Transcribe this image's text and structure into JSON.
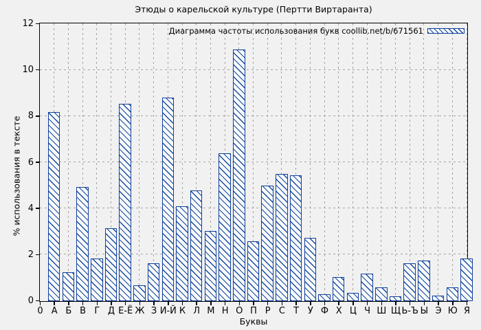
{
  "chart_data": {
    "type": "bar",
    "title": "Этюды о карельской культуре (Пертти Виртаранта)",
    "legend_label": "Диаграмма частоты использования букв coollib.net/b/671561",
    "xlabel": "Буквы",
    "ylabel": "% использования в тексте",
    "ylim": [
      0,
      12
    ],
    "yticks": [
      0,
      2,
      4,
      6,
      8,
      10,
      12
    ],
    "grid": true,
    "legend_position": "top-right-inside",
    "categories": [
      "0",
      "А",
      "Б",
      "В",
      "Г",
      "Д",
      "Е-Ё",
      "Ж",
      "З",
      "И-Й",
      "К",
      "Л",
      "М",
      "Н",
      "О",
      "П",
      "Р",
      "С",
      "Т",
      "У",
      "Ф",
      "Х",
      "Ц",
      "Ч",
      "Ш",
      "Щ",
      "Ь-Ъ",
      "Ы",
      "Э",
      "Ю",
      "Я"
    ],
    "values": [
      0,
      8.2,
      1.25,
      4.95,
      1.85,
      3.15,
      8.55,
      0.7,
      1.65,
      8.8,
      4.1,
      4.8,
      3.05,
      6.4,
      10.9,
      2.6,
      5.0,
      5.5,
      5.45,
      2.75,
      0.3,
      1.05,
      0.35,
      1.2,
      0.6,
      0.2,
      1.65,
      1.75,
      0.25,
      0.6,
      1.85
    ],
    "colors": {
      "bar_edge": "#0e3f9b",
      "bar_hatch": "#1149a5",
      "bar_fill": "#f9f9f9",
      "background": "#f1f1f1",
      "grid": "#a3a3a3",
      "axis": "#000000",
      "text": "#000000"
    }
  }
}
